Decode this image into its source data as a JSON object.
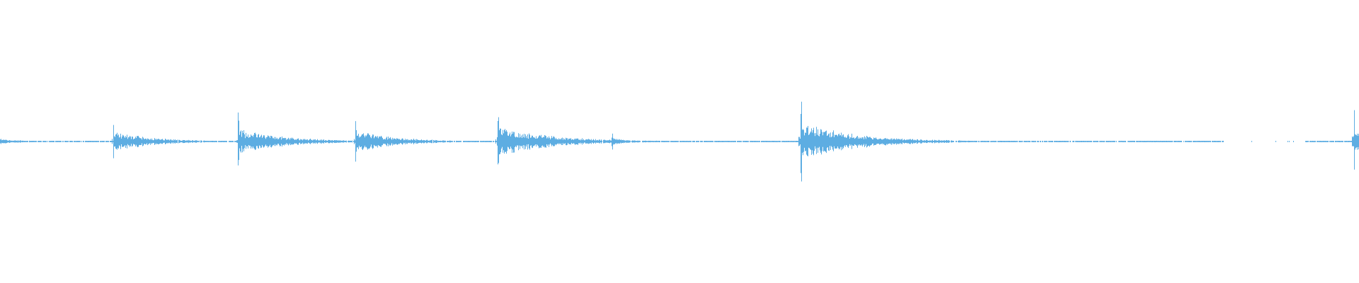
{
  "chart_data": {
    "type": "area",
    "subtype": "audio-waveform",
    "title": "",
    "xlabel": "",
    "ylabel": "",
    "ylim": [
      -1,
      1
    ],
    "grid": false,
    "axes_visible": false,
    "color": "#5dade2",
    "background": "#ffffff",
    "baseline_amplitude": 0.005,
    "onsets": [
      {
        "time_fraction": 0.0,
        "amplitude": 0.04,
        "decay_fraction": 0.02
      },
      {
        "time_fraction": 0.083,
        "amplitude": 0.17,
        "decay_fraction": 0.03
      },
      {
        "time_fraction": 0.175,
        "amplitude": 0.21,
        "decay_fraction": 0.035
      },
      {
        "time_fraction": 0.261,
        "amplitude": 0.19,
        "decay_fraction": 0.03
      },
      {
        "time_fraction": 0.366,
        "amplitude": 0.25,
        "decay_fraction": 0.04
      },
      {
        "time_fraction": 0.45,
        "amplitude": 0.06,
        "decay_fraction": 0.015
      },
      {
        "time_fraction": 0.589,
        "amplitude": 0.34,
        "decay_fraction": 0.04
      },
      {
        "time_fraction": 0.996,
        "amplitude": 0.27,
        "decay_fraction": 0.01
      }
    ],
    "signal_gap_fraction": [
      0.9,
      0.96
    ]
  }
}
